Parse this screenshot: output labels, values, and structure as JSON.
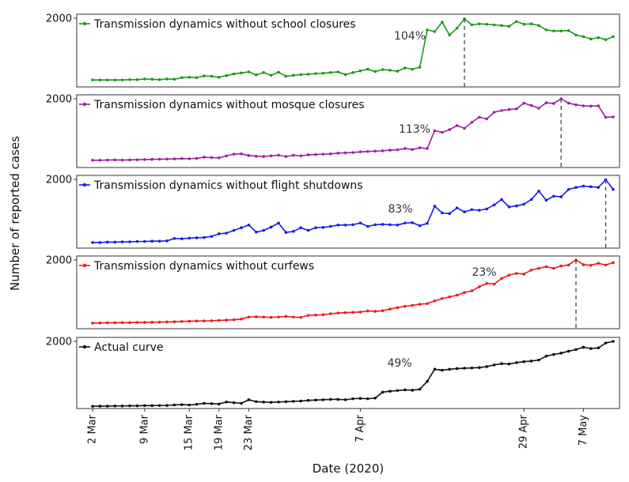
{
  "chart_data": {
    "type": "line",
    "ylabel": "Number of reported cases",
    "xlabel": "Date (2020)",
    "x": [
      "2 Mar",
      "3 Mar",
      "4 Mar",
      "5 Mar",
      "6 Mar",
      "7 Mar",
      "8 Mar",
      "9 Mar",
      "10 Mar",
      "11 Mar",
      "12 Mar",
      "13 Mar",
      "14 Mar",
      "15 Mar",
      "16 Mar",
      "17 Mar",
      "18 Mar",
      "19 Mar",
      "20 Mar",
      "21 Mar",
      "22 Mar",
      "23 Mar",
      "24 Mar",
      "25 Mar",
      "26 Mar",
      "27 Mar",
      "28 Mar",
      "29 Mar",
      "30 Mar",
      "31 Mar",
      "1 Apr",
      "2 Apr",
      "3 Apr",
      "4 Apr",
      "5 Apr",
      "6 Apr",
      "7 Apr",
      "8 Apr",
      "9 Apr",
      "10 Apr",
      "11 Apr",
      "12 Apr",
      "13 Apr",
      "14 Apr",
      "15 Apr",
      "16 Apr",
      "17 Apr",
      "18 Apr",
      "19 Apr",
      "20 Apr",
      "21 Apr",
      "22 Apr",
      "23 Apr",
      "24 Apr",
      "25 Apr",
      "26 Apr",
      "27 Apr",
      "28 Apr",
      "29 Apr",
      "30 Apr",
      "1 May",
      "2 May",
      "3 May",
      "4 May",
      "5 May",
      "6 May",
      "7 May",
      "8 May",
      "9 May",
      "10 May",
      "11 May"
    ],
    "xticks": [
      "2 Mar",
      "9 Mar",
      "15 Mar",
      "19 Mar",
      "23 Mar",
      "7 Apr",
      "29 Apr",
      "7 May"
    ],
    "ylim": [
      0,
      2000
    ],
    "yticks": [
      2000
    ],
    "series": [
      {
        "name": "Transmission dynamics without school closures",
        "color": "#1a9a1a",
        "annotation": "104%",
        "values": [
          160,
          160,
          160,
          160,
          160,
          170,
          170,
          190,
          180,
          170,
          190,
          180,
          230,
          240,
          230,
          280,
          270,
          240,
          290,
          340,
          370,
          400,
          310,
          380,
          300,
          390,
          270,
          300,
          320,
          330,
          350,
          360,
          380,
          400,
          320,
          380,
          430,
          480,
          410,
          470,
          450,
          420,
          520,
          480,
          540,
          1650,
          1600,
          1880,
          1500,
          1700,
          1980,
          1800,
          1830,
          1820,
          1800,
          1780,
          1760,
          1900,
          1820,
          1830,
          1780,
          1650,
          1620,
          1620,
          1630,
          1500,
          1450,
          1380,
          1420,
          1360,
          1450
        ]
      },
      {
        "name": "Transmission dynamics without mosque closures",
        "color": "#a020a0",
        "annotation": "113%",
        "values": [
          170,
          170,
          175,
          180,
          175,
          180,
          185,
          190,
          195,
          200,
          205,
          210,
          220,
          215,
          225,
          260,
          250,
          240,
          300,
          350,
          360,
          310,
          290,
          280,
          300,
          320,
          280,
          320,
          300,
          330,
          340,
          350,
          360,
          380,
          390,
          400,
          420,
          430,
          440,
          450,
          470,
          480,
          520,
          490,
          540,
          520,
          1050,
          1000,
          1080,
          1200,
          1120,
          1300,
          1450,
          1400,
          1600,
          1650,
          1680,
          1700,
          1870,
          1800,
          1720,
          1880,
          1860,
          2000,
          1870,
          1820,
          1790,
          1780,
          1790,
          1450,
          1460
        ]
      },
      {
        "name": "Transmission dynamics without flight shutdowns",
        "color": "#1a1aee",
        "annotation": "83%",
        "values": [
          120,
          120,
          130,
          130,
          140,
          140,
          150,
          150,
          160,
          160,
          170,
          240,
          230,
          250,
          260,
          270,
          300,
          380,
          400,
          480,
          560,
          640,
          430,
          480,
          580,
          700,
          420,
          450,
          560,
          480,
          560,
          570,
          600,
          640,
          640,
          650,
          700,
          600,
          650,
          660,
          650,
          640,
          700,
          710,
          620,
          690,
          1200,
          1000,
          980,
          1150,
          1030,
          1100,
          1080,
          1120,
          1240,
          1400,
          1180,
          1210,
          1260,
          1400,
          1650,
          1380,
          1500,
          1480,
          1700,
          1760,
          1800,
          1780,
          1760,
          1990,
          1700
        ]
      },
      {
        "name": "Transmission dynamics without curfews",
        "color": "#ee1a1a",
        "annotation": "23%",
        "values": [
          120,
          125,
          130,
          130,
          135,
          135,
          140,
          140,
          145,
          150,
          155,
          160,
          170,
          175,
          180,
          185,
          190,
          200,
          210,
          220,
          240,
          300,
          310,
          300,
          290,
          300,
          320,
          300,
          290,
          350,
          360,
          370,
          400,
          420,
          430,
          440,
          450,
          480,
          470,
          490,
          540,
          580,
          620,
          650,
          680,
          700,
          780,
          850,
          900,
          950,
          1030,
          1080,
          1200,
          1300,
          1280,
          1450,
          1550,
          1600,
          1580,
          1700,
          1750,
          1800,
          1750,
          1820,
          1850,
          2000,
          1860,
          1840,
          1900,
          1850,
          1920
        ]
      },
      {
        "name": "Actual curve",
        "color": "#111111",
        "annotation": "49%",
        "values": [
          20,
          25,
          25,
          30,
          30,
          35,
          35,
          40,
          40,
          45,
          45,
          60,
          70,
          60,
          80,
          110,
          100,
          90,
          150,
          130,
          110,
          220,
          160,
          150,
          140,
          150,
          160,
          170,
          180,
          200,
          210,
          220,
          230,
          230,
          220,
          250,
          260,
          250,
          270,
          450,
          480,
          500,
          520,
          510,
          540,
          780,
          1150,
          1120,
          1150,
          1170,
          1180,
          1190,
          1200,
          1230,
          1280,
          1320,
          1310,
          1350,
          1380,
          1400,
          1430,
          1550,
          1600,
          1640,
          1700,
          1750,
          1820,
          1780,
          1800,
          1950,
          2000
        ]
      }
    ]
  }
}
